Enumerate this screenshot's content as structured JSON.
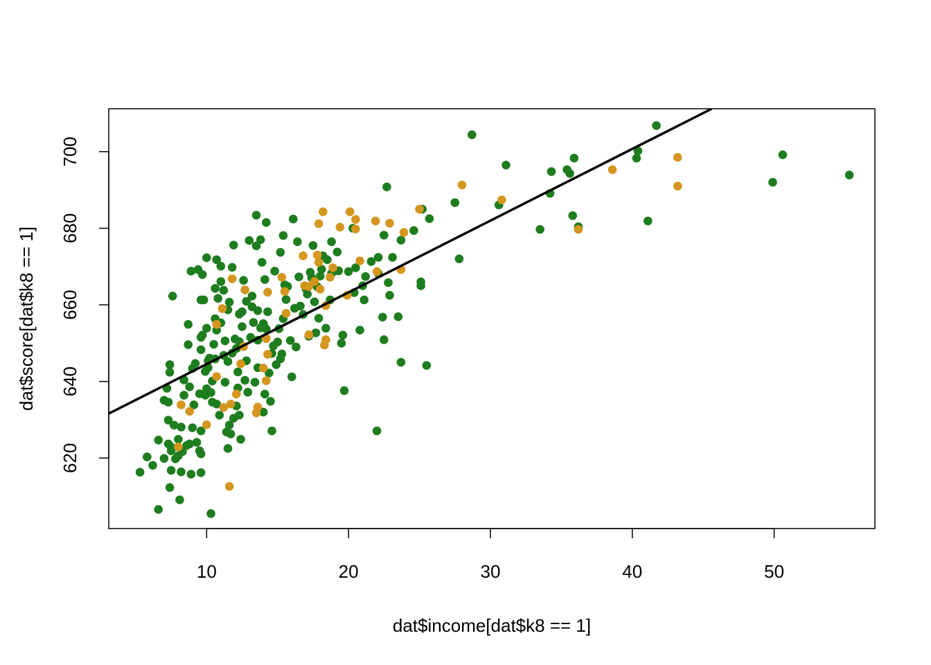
{
  "chart_data": {
    "type": "scatter",
    "title": "",
    "xlabel": "dat$income[dat$k8 == 1]",
    "ylabel": "dat$score[dat$k8 == 1]",
    "xlim": [
      3.1,
      57.1
    ],
    "ylim": [
      601.6,
      711.2
    ],
    "xticks": [
      10,
      20,
      30,
      40,
      50
    ],
    "yticks": [
      620,
      640,
      660,
      680,
      700
    ],
    "grid": false,
    "legend": "none",
    "colors": {
      "green": "#1e7d1e",
      "orange": "#d4961e",
      "line": "#000000"
    },
    "fit_line": {
      "x": [
        3.1,
        45.6
      ],
      "y": [
        631.6,
        711.2
      ]
    },
    "series": [
      {
        "color": "#1e7d1e",
        "points": [
          [
            5.3,
            616.3
          ],
          [
            5.8,
            620.3
          ],
          [
            6.2,
            618.1
          ],
          [
            6.6,
            606.6
          ],
          [
            6.6,
            624.7
          ],
          [
            7.0,
            635.1
          ],
          [
            7.0,
            619.9
          ],
          [
            7.2,
            638.2
          ],
          [
            7.3,
            623.7
          ],
          [
            7.3,
            634.6
          ],
          [
            7.3,
            629.9
          ],
          [
            7.4,
            644.4
          ],
          [
            7.4,
            642.4
          ],
          [
            7.4,
            612.3
          ],
          [
            7.5,
            616.8
          ],
          [
            7.5,
            621.9
          ],
          [
            7.5,
            622.9
          ],
          [
            7.6,
            662.3
          ],
          [
            7.7,
            628.6
          ],
          [
            7.8,
            619.8
          ],
          [
            8.0,
            624.9
          ],
          [
            8.0,
            620.6
          ],
          [
            8.1,
            609.1
          ],
          [
            8.2,
            628.1
          ],
          [
            8.2,
            616.4
          ],
          [
            8.3,
            621.7
          ],
          [
            8.4,
            640.4
          ],
          [
            8.4,
            636.4
          ],
          [
            8.6,
            623.3
          ],
          [
            8.7,
            654.9
          ],
          [
            8.7,
            649.6
          ],
          [
            8.8,
            638.6
          ],
          [
            8.8,
            623.7
          ],
          [
            8.9,
            615.8
          ],
          [
            8.9,
            668.8
          ],
          [
            9.0,
            627.9
          ],
          [
            9.0,
            643.4
          ],
          [
            9.1,
            633.9
          ],
          [
            9.2,
            644.7
          ],
          [
            9.3,
            624.1
          ],
          [
            9.4,
            669.2
          ],
          [
            9.5,
            636.8
          ],
          [
            9.5,
            621.9
          ],
          [
            9.6,
            621.1
          ],
          [
            9.6,
            627.1
          ],
          [
            9.6,
            661.3
          ],
          [
            9.6,
            651.5
          ],
          [
            9.6,
            616.2
          ],
          [
            9.6,
            648.3
          ],
          [
            9.7,
            652.1
          ],
          [
            9.7,
            667.9
          ],
          [
            9.8,
            661.3
          ],
          [
            9.9,
            642.6
          ],
          [
            9.9,
            636.4
          ],
          [
            10.0,
            653.9
          ],
          [
            10.0,
            672.3
          ],
          [
            10.0,
            638.1
          ],
          [
            10.1,
            643.6
          ],
          [
            10.1,
            645.4
          ],
          [
            10.2,
            646.1
          ],
          [
            10.3,
            637.1
          ],
          [
            10.3,
            605.5
          ],
          [
            10.4,
            634.6
          ],
          [
            10.4,
            640.1
          ],
          [
            10.5,
            649.7
          ],
          [
            10.6,
            645.9
          ],
          [
            10.6,
            656.4
          ],
          [
            10.6,
            664.3
          ],
          [
            10.7,
            634.1
          ],
          [
            10.7,
            671.8
          ],
          [
            10.7,
            653.4
          ],
          [
            10.8,
            661.7
          ],
          [
            10.9,
            631.2
          ],
          [
            11.0,
            666.1
          ],
          [
            11.0,
            670.1
          ],
          [
            11.0,
            655.3
          ],
          [
            11.2,
            646.8
          ],
          [
            11.2,
            663.8
          ],
          [
            11.3,
            650.6
          ],
          [
            11.3,
            639.8
          ],
          [
            11.4,
            626.8
          ],
          [
            11.5,
            658.7
          ],
          [
            11.5,
            645.2
          ],
          [
            11.6,
            628.6
          ],
          [
            11.6,
            660.7
          ],
          [
            11.7,
            626.3
          ],
          [
            11.8,
            647.4
          ],
          [
            11.8,
            669.8
          ],
          [
            11.9,
            675.6
          ],
          [
            11.9,
            630.4
          ],
          [
            12.0,
            651.1
          ],
          [
            12.1,
            633.6
          ],
          [
            12.2,
            638.3
          ],
          [
            12.2,
            642.5
          ],
          [
            12.3,
            657.6
          ],
          [
            12.3,
            650.4
          ],
          [
            12.3,
            631.2
          ],
          [
            12.4,
            624.9
          ],
          [
            12.5,
            658.2
          ],
          [
            12.5,
            654.3
          ],
          [
            12.6,
            666.4
          ],
          [
            12.7,
            640.3
          ],
          [
            12.8,
            660.9
          ],
          [
            12.8,
            645.4
          ],
          [
            13.0,
            676.8
          ],
          [
            13.1,
            651.5
          ],
          [
            13.2,
            659.5
          ],
          [
            13.2,
            662.3
          ],
          [
            13.3,
            655.4
          ],
          [
            13.4,
            639.8
          ],
          [
            13.5,
            675.4
          ],
          [
            13.5,
            683.4
          ],
          [
            13.6,
            658.5
          ],
          [
            13.6,
            650.8
          ],
          [
            13.6,
            643.6
          ],
          [
            13.8,
            677.0
          ],
          [
            13.9,
            671.1
          ],
          [
            14.0,
            632.0
          ],
          [
            14.0,
            655.1
          ],
          [
            14.1,
            666.6
          ],
          [
            14.2,
            681.5
          ],
          [
            14.2,
            653.7
          ],
          [
            14.3,
            658.2
          ],
          [
            14.4,
            642.2
          ],
          [
            14.5,
            634.8
          ],
          [
            14.6,
            627.1
          ],
          [
            14.6,
            647.3
          ],
          [
            14.8,
            668.8
          ],
          [
            14.9,
            644.4
          ],
          [
            15.0,
            650.3
          ],
          [
            15.1,
            653.8
          ],
          [
            15.2,
            673.7
          ],
          [
            15.3,
            647.2
          ],
          [
            15.4,
            678.1
          ],
          [
            15.4,
            656.4
          ],
          [
            15.5,
            665.2
          ],
          [
            15.6,
            661.4
          ],
          [
            15.7,
            664.8
          ],
          [
            15.9,
            650.7
          ],
          [
            16.0,
            641.2
          ],
          [
            16.1,
            682.4
          ],
          [
            16.2,
            659.1
          ],
          [
            16.3,
            649.0
          ],
          [
            16.4,
            676.5
          ],
          [
            16.5,
            667.3
          ],
          [
            16.8,
            657.5
          ],
          [
            17.1,
            662.8
          ],
          [
            17.3,
            668.5
          ],
          [
            17.5,
            675.5
          ],
          [
            17.6,
            660.8
          ],
          [
            17.7,
            652.7
          ],
          [
            17.8,
            664.7
          ],
          [
            17.9,
            656.5
          ],
          [
            18.1,
            669.3
          ],
          [
            18.4,
            653.9
          ],
          [
            18.5,
            671.8
          ],
          [
            18.7,
            661.3
          ],
          [
            18.8,
            676.5
          ],
          [
            19.0,
            668.8
          ],
          [
            19.2,
            673.8
          ],
          [
            19.6,
            652.1
          ],
          [
            19.7,
            637.6
          ],
          [
            20.0,
            668.7
          ],
          [
            20.3,
            680.0
          ],
          [
            20.5,
            669.7
          ],
          [
            20.8,
            653.4
          ],
          [
            21.0,
            665.0
          ],
          [
            21.1,
            661.3
          ],
          [
            21.6,
            671.3
          ],
          [
            22.0,
            627.1
          ],
          [
            22.1,
            668.2
          ],
          [
            22.4,
            656.8
          ],
          [
            22.5,
            678.2
          ],
          [
            22.5,
            650.9
          ],
          [
            22.7,
            690.8
          ],
          [
            22.8,
            665.8
          ],
          [
            22.9,
            662.5
          ],
          [
            23.5,
            656.9
          ],
          [
            23.7,
            645.0
          ],
          [
            23.7,
            676.9
          ],
          [
            24.6,
            679.4
          ],
          [
            25.1,
            665.0
          ],
          [
            25.1,
            666.0
          ],
          [
            25.2,
            685.0
          ],
          [
            25.5,
            644.2
          ],
          [
            25.7,
            682.5
          ],
          [
            27.5,
            686.7
          ],
          [
            27.8,
            672.0
          ],
          [
            28.7,
            704.4
          ],
          [
            30.6,
            686.1
          ],
          [
            31.1,
            696.5
          ],
          [
            33.5,
            679.7
          ],
          [
            34.2,
            689.1
          ],
          [
            34.3,
            694.8
          ],
          [
            35.4,
            695.3
          ],
          [
            35.6,
            694.3
          ],
          [
            35.8,
            683.3
          ],
          [
            35.9,
            698.3
          ],
          [
            36.2,
            680.4
          ],
          [
            40.3,
            698.3
          ],
          [
            40.4,
            700.2
          ],
          [
            41.1,
            681.9
          ],
          [
            41.7,
            706.8
          ],
          [
            49.9,
            692.0
          ],
          [
            50.6,
            699.2
          ],
          [
            55.3,
            693.9
          ],
          [
            11.5,
            622.5
          ],
          [
            12.1,
            648.6
          ],
          [
            12.9,
            637.2
          ],
          [
            13.8,
            654.0
          ],
          [
            14.1,
            636.7
          ],
          [
            14.7,
            649.3
          ],
          [
            15.2,
            645.9
          ],
          [
            16.6,
            659.7
          ],
          [
            17.0,
            664.2
          ],
          [
            17.2,
            651.8
          ],
          [
            17.4,
            667.1
          ],
          [
            18.0,
            667.5
          ],
          [
            18.2,
            672.8
          ],
          [
            18.8,
            668.2
          ],
          [
            19.3,
            668.9
          ],
          [
            19.5,
            650.0
          ],
          [
            20.4,
            663.2
          ],
          [
            21.2,
            667.4
          ],
          [
            22.1,
            672.4
          ],
          [
            23.1,
            672.4
          ]
        ]
      },
      {
        "color": "#d4961e",
        "points": [
          [
            8.0,
            622.9
          ],
          [
            8.2,
            633.9
          ],
          [
            8.8,
            632.2
          ],
          [
            10.0,
            628.7
          ],
          [
            10.7,
            654.9
          ],
          [
            10.7,
            641.3
          ],
          [
            11.1,
            659.0
          ],
          [
            11.2,
            633.2
          ],
          [
            11.6,
            612.6
          ],
          [
            11.7,
            634.1
          ],
          [
            11.8,
            666.8
          ],
          [
            12.1,
            636.7
          ],
          [
            12.4,
            644.6
          ],
          [
            12.6,
            649.1
          ],
          [
            12.7,
            663.9
          ],
          [
            13.5,
            631.8
          ],
          [
            13.6,
            633.3
          ],
          [
            14.0,
            643.5
          ],
          [
            14.2,
            640.2
          ],
          [
            14.2,
            651.2
          ],
          [
            14.3,
            647.1
          ],
          [
            14.3,
            663.3
          ],
          [
            15.3,
            667.2
          ],
          [
            15.5,
            663.5
          ],
          [
            15.6,
            657.8
          ],
          [
            16.8,
            672.8
          ],
          [
            16.9,
            665.0
          ],
          [
            17.2,
            652.2
          ],
          [
            17.2,
            664.8
          ],
          [
            17.6,
            666.1
          ],
          [
            17.8,
            673.0
          ],
          [
            17.9,
            671.1
          ],
          [
            17.9,
            681.2
          ],
          [
            18.0,
            664.1
          ],
          [
            18.2,
            684.3
          ],
          [
            18.3,
            649.5
          ],
          [
            18.4,
            650.9
          ],
          [
            18.4,
            659.8
          ],
          [
            18.7,
            667.2
          ],
          [
            18.9,
            669.7
          ],
          [
            19.4,
            680.3
          ],
          [
            19.9,
            662.5
          ],
          [
            20.1,
            684.3
          ],
          [
            20.5,
            679.8
          ],
          [
            20.5,
            682.3
          ],
          [
            20.8,
            671.5
          ],
          [
            21.9,
            681.9
          ],
          [
            22.0,
            668.7
          ],
          [
            22.9,
            681.3
          ],
          [
            23.7,
            669.2
          ],
          [
            23.9,
            678.9
          ],
          [
            25.0,
            685.0
          ],
          [
            28.0,
            691.3
          ],
          [
            30.8,
            687.4
          ],
          [
            36.2,
            679.7
          ],
          [
            38.6,
            695.3
          ],
          [
            43.2,
            698.5
          ],
          [
            43.2,
            691.0
          ]
        ]
      }
    ]
  }
}
